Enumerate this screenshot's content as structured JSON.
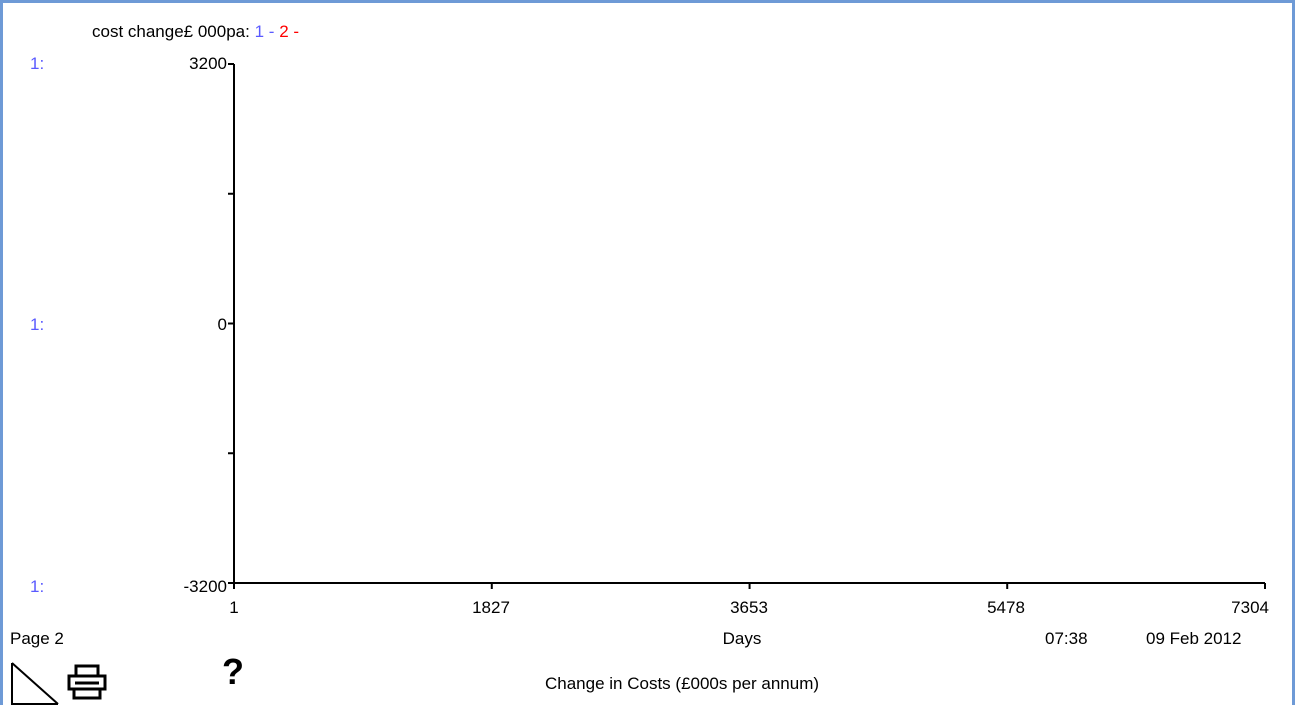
{
  "legend": {
    "prefix": "cost change£ 000pa:",
    "series": [
      {
        "number": "1",
        "dash": "-",
        "color": "#5a5aff"
      },
      {
        "number": "2",
        "dash": "-",
        "color": "#ff0000"
      }
    ]
  },
  "axis_markers": {
    "top": "1:",
    "mid": "1:",
    "bottom": "1:"
  },
  "chart_data": {
    "type": "line",
    "title": "Change in Costs (£000s per annum)",
    "xlabel": "Days",
    "ylabel": "cost change£ 000pa",
    "x_ticks": [
      "1",
      "1827",
      "3653",
      "5478",
      "7304"
    ],
    "xlim": [
      1,
      7304
    ],
    "y_ticks": [
      "3200",
      "0",
      "-3200"
    ],
    "ylim": [
      -3200,
      3200
    ],
    "grid": false,
    "series": [
      {
        "name": "1",
        "color": "#5a5aff",
        "x": [],
        "values": []
      },
      {
        "name": "2",
        "color": "#ff0000",
        "x": [],
        "values": []
      }
    ]
  },
  "footer": {
    "page": "Page 2",
    "time": "07:38",
    "date": "09 Feb 2012",
    "help": "?"
  },
  "icons": {
    "page_flip": "page-corner-icon",
    "print": "printer-icon"
  }
}
